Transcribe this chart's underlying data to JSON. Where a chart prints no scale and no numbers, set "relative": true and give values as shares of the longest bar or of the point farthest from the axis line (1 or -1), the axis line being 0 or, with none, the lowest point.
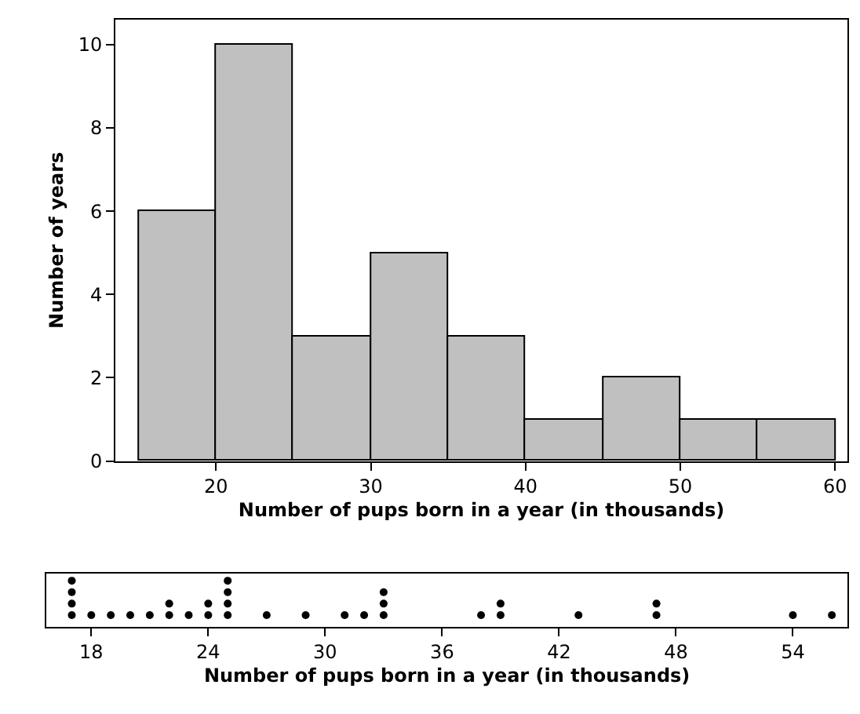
{
  "chart_data": [
    {
      "type": "histogram",
      "xlabel": "Number of pups born in a year (in thousands)",
      "ylabel": "Number of years",
      "bins": [
        15,
        20,
        25,
        30,
        35,
        40,
        45,
        50,
        55,
        60
      ],
      "values": [
        6,
        10,
        3,
        5,
        3,
        1,
        2,
        1,
        1
      ],
      "color": "#c0c0c0",
      "xlim": [
        13.5,
        60.8
      ],
      "xticks": [
        20,
        30,
        40,
        50,
        60
      ],
      "ylim": [
        0,
        10.6
      ],
      "yticks": [
        0,
        2,
        4,
        6,
        8,
        10
      ]
    },
    {
      "type": "scatter",
      "relative": true,
      "xlabel": "Number of pups born in a year (in thousands)",
      "x": [
        17,
        17,
        17,
        17,
        18,
        19,
        20,
        21,
        22,
        22,
        23,
        24,
        24,
        25,
        25,
        25,
        25,
        27,
        29,
        31,
        32,
        33,
        33,
        33,
        38,
        39,
        39,
        43,
        47,
        47,
        54,
        56
      ],
      "values": [
        0.25,
        0.5,
        0.75,
        1,
        0.25,
        0.25,
        0.25,
        0.25,
        0.25,
        0.5,
        0.25,
        0.25,
        0.5,
        0.25,
        0.5,
        0.75,
        1,
        0.25,
        0.25,
        0.25,
        0.25,
        0.25,
        0.5,
        0.75,
        0.25,
        0.25,
        0.5,
        0.25,
        0.25,
        0.5,
        0.25,
        0.25
      ],
      "color": "#000000",
      "marker": "circle",
      "xlim": [
        15.7,
        56.8
      ],
      "xticks": [
        18,
        24,
        30,
        36,
        42,
        48,
        54
      ],
      "tick_labels": "x"
    }
  ]
}
